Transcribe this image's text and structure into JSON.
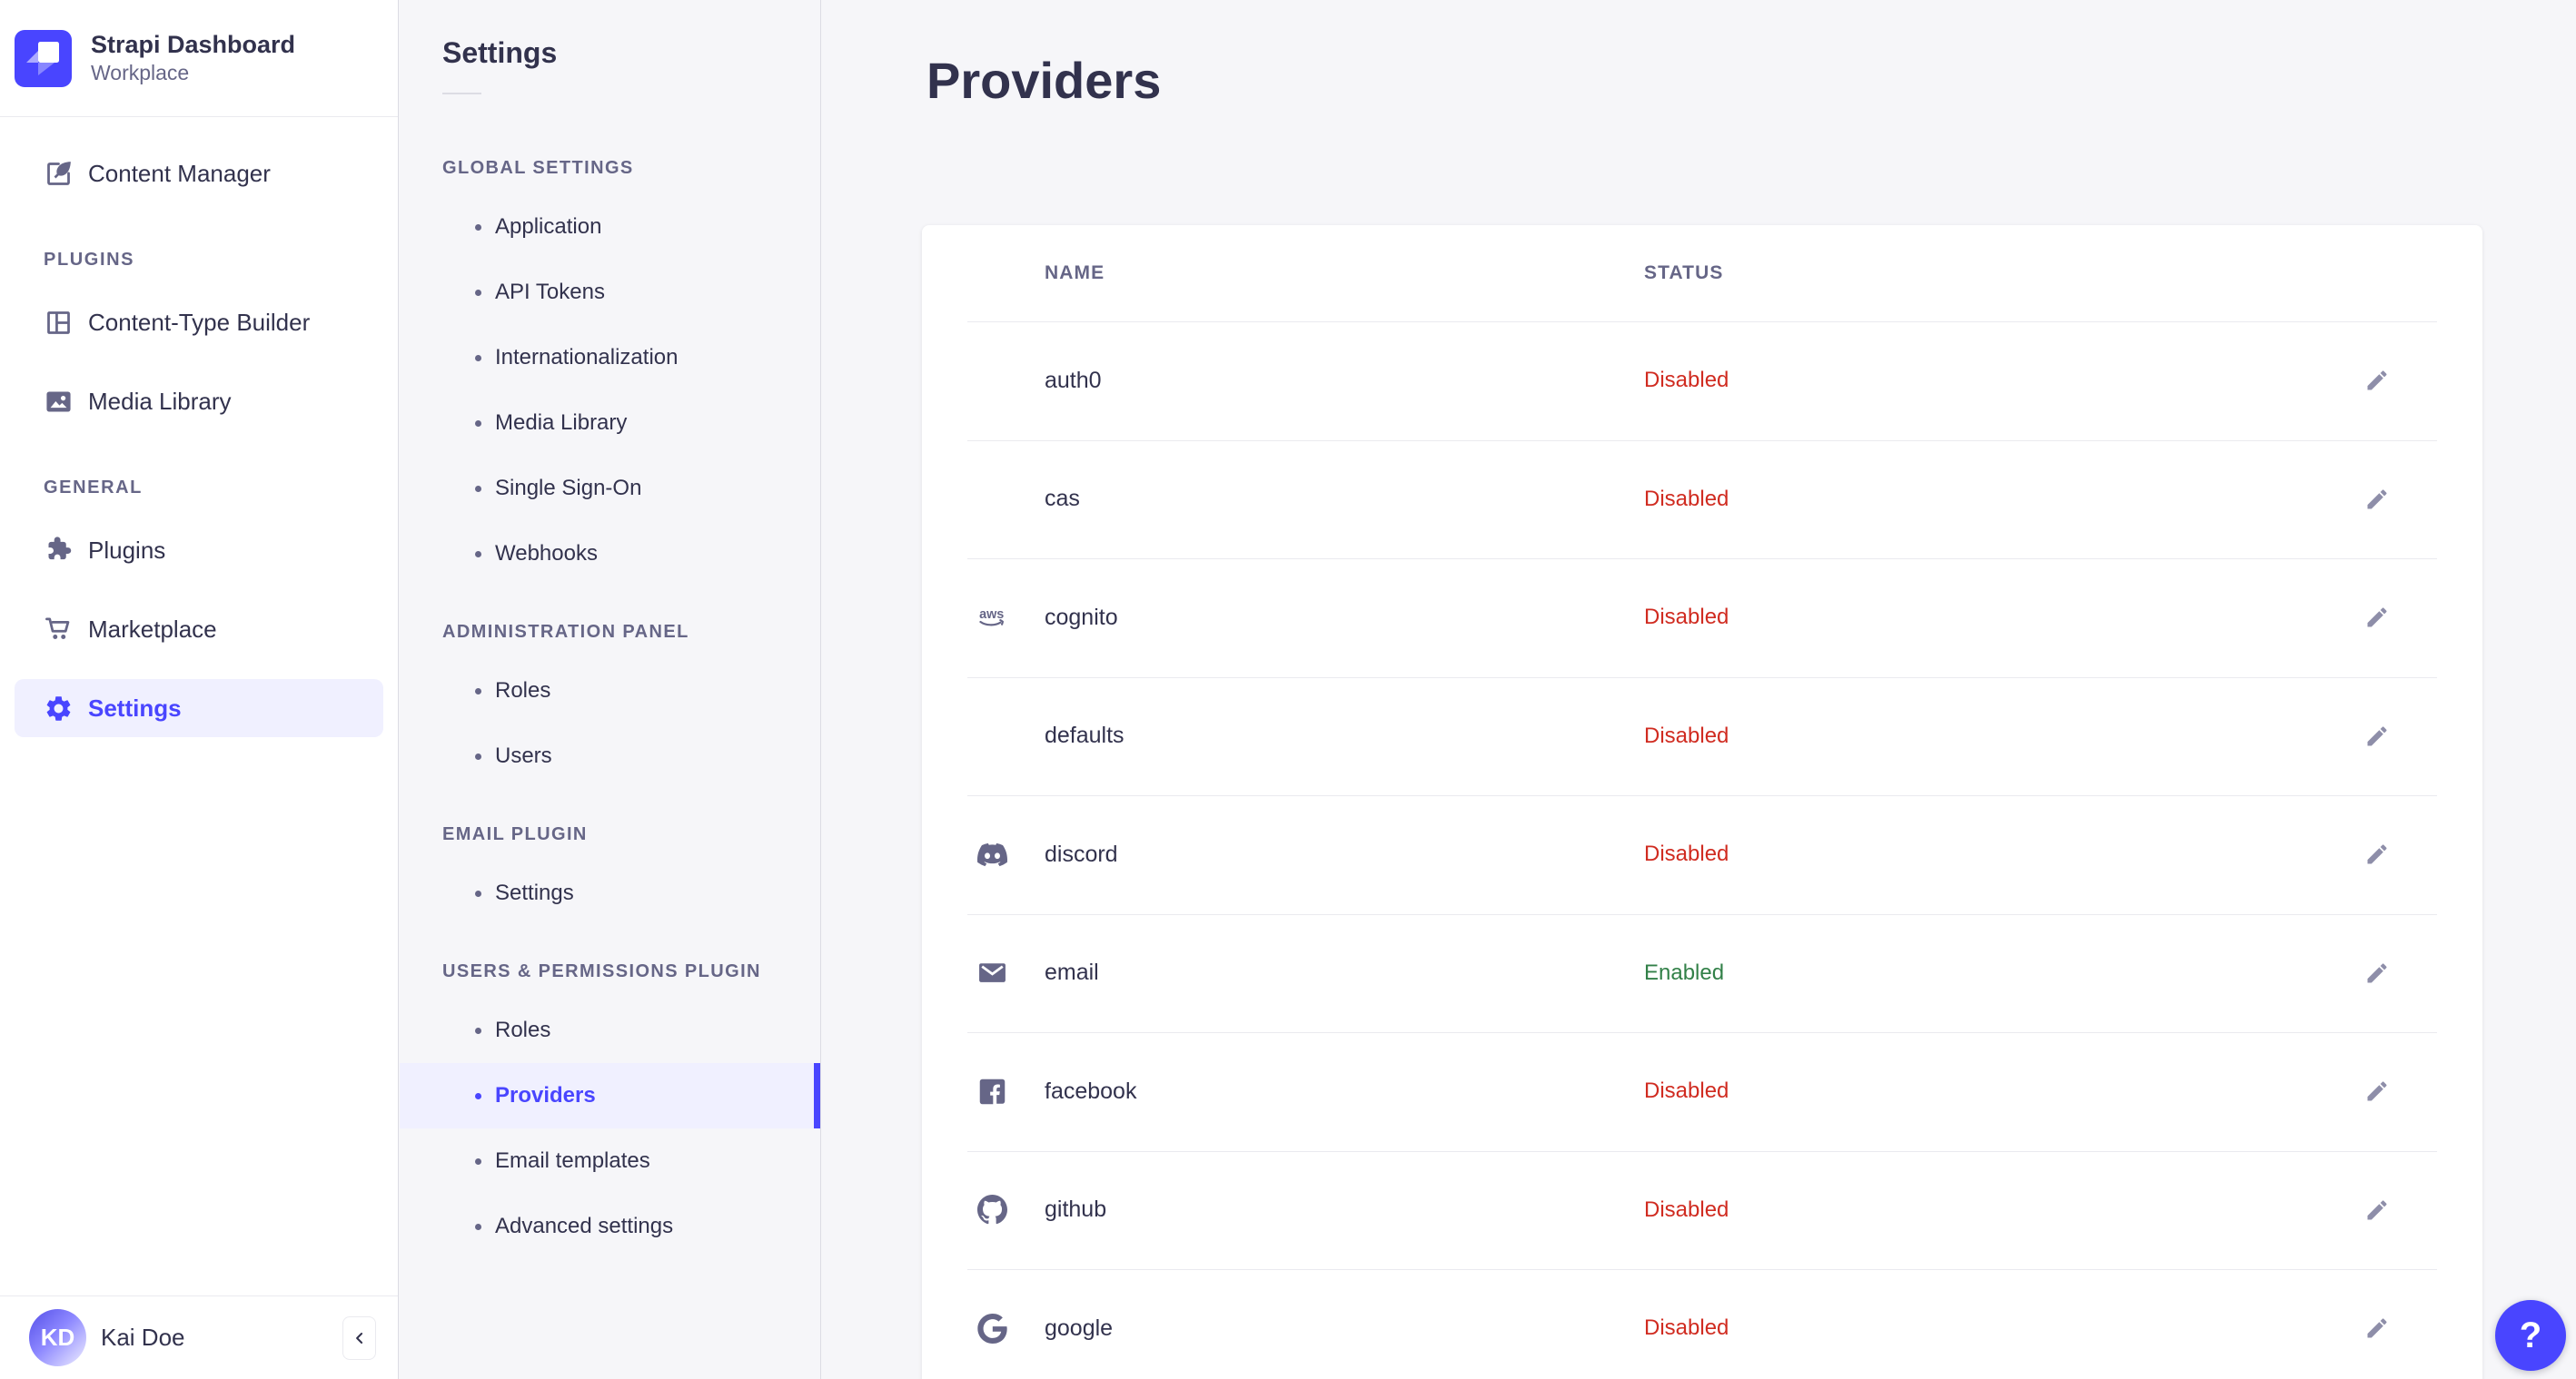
{
  "app": {
    "name": "Strapi Dashboard",
    "workspace": "Workplace"
  },
  "user": {
    "initials": "KD",
    "name": "Kai Doe"
  },
  "main_nav": {
    "items": [
      {
        "label": "Content Manager",
        "icon": "feather-icon"
      },
      {
        "section": "PLUGINS"
      },
      {
        "label": "Content-Type Builder",
        "icon": "layout-icon"
      },
      {
        "label": "Media Library",
        "icon": "picture-icon"
      },
      {
        "section": "GENERAL"
      },
      {
        "label": "Plugins",
        "icon": "puzzle-icon"
      },
      {
        "label": "Marketplace",
        "icon": "cart-icon"
      },
      {
        "label": "Settings",
        "icon": "gear-icon",
        "active": true
      }
    ]
  },
  "settings_nav": {
    "title": "Settings",
    "sections": [
      {
        "label": "GLOBAL SETTINGS",
        "items": [
          "Application",
          "API Tokens",
          "Internationalization",
          "Media Library",
          "Single Sign-On",
          "Webhooks"
        ]
      },
      {
        "label": "ADMINISTRATION PANEL",
        "items": [
          "Roles",
          "Users"
        ]
      },
      {
        "label": "EMAIL PLUGIN",
        "items": [
          "Settings"
        ]
      },
      {
        "label": "USERS & PERMISSIONS PLUGIN",
        "items": [
          "Roles",
          "Providers",
          "Email templates",
          "Advanced settings"
        ],
        "active_item": "Providers"
      }
    ]
  },
  "page": {
    "title": "Providers",
    "table": {
      "columns": [
        "NAME",
        "STATUS"
      ],
      "rows": [
        {
          "name": "auth0",
          "icon": null,
          "status": "Disabled"
        },
        {
          "name": "cas",
          "icon": null,
          "status": "Disabled"
        },
        {
          "name": "cognito",
          "icon": "aws-icon",
          "status": "Disabled"
        },
        {
          "name": "defaults",
          "icon": null,
          "status": "Disabled"
        },
        {
          "name": "discord",
          "icon": "discord-icon",
          "status": "Disabled"
        },
        {
          "name": "email",
          "icon": "envelope-icon",
          "status": "Enabled"
        },
        {
          "name": "facebook",
          "icon": "facebook-icon",
          "status": "Disabled"
        },
        {
          "name": "github",
          "icon": "github-icon",
          "status": "Disabled"
        },
        {
          "name": "google",
          "icon": "google-icon",
          "status": "Disabled"
        }
      ]
    }
  },
  "help": {
    "label": "?"
  },
  "colors": {
    "accent": "#4945ff",
    "accent_bg": "#f0f0ff",
    "status_disabled": "#d02b20",
    "status_enabled": "#328048",
    "text": "#32324d",
    "muted": "#666687",
    "background": "#f6f6f9",
    "card": "#ffffff",
    "border": "#eaeaef"
  }
}
